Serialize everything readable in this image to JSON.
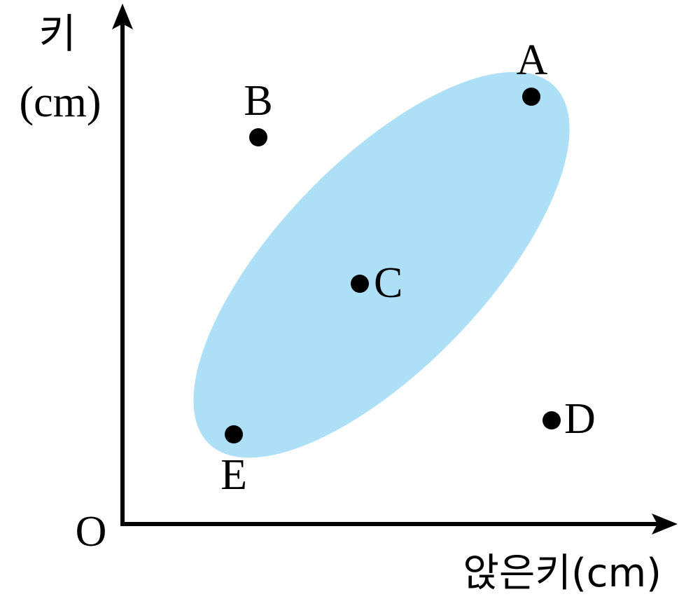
{
  "axes": {
    "y_label": "키",
    "y_unit": "(cm)",
    "x_label": "앉은키(cm)",
    "origin": "O"
  },
  "points": [
    {
      "label": "A"
    },
    {
      "label": "B"
    },
    {
      "label": "C"
    },
    {
      "label": "D"
    },
    {
      "label": "E"
    }
  ]
}
